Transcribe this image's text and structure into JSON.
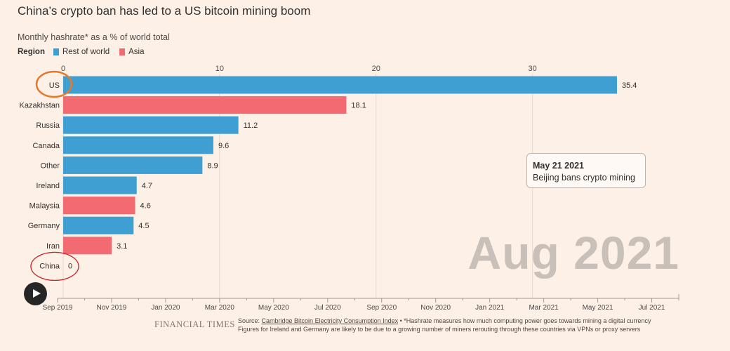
{
  "header": {
    "title": "China’s crypto ban has led to a US bitcoin mining boom",
    "subtitle": "Monthly hashrate* as a % of world total"
  },
  "legend": {
    "title": "Region",
    "items": [
      {
        "label": "Rest of world",
        "color": "#3f9fd3"
      },
      {
        "label": "Asia",
        "color": "#f26a72"
      }
    ]
  },
  "chart_data": {
    "type": "bar",
    "orientation": "horizontal",
    "categories": [
      "US",
      "Kazakhstan",
      "Russia",
      "Canada",
      "Other",
      "Ireland",
      "Malaysia",
      "Germany",
      "Iran",
      "China"
    ],
    "values": [
      35.4,
      18.1,
      11.2,
      9.6,
      8.9,
      4.7,
      4.6,
      4.5,
      3.1,
      0
    ],
    "value_labels": [
      "35.4",
      "18.1",
      "11.2",
      "9.6",
      "8.9",
      "4.7",
      "4.6",
      "4.5",
      "3.1",
      "0"
    ],
    "regions": [
      "Rest of world",
      "Asia",
      "Rest of world",
      "Rest of world",
      "Rest of world",
      "Rest of world",
      "Asia",
      "Rest of world",
      "Asia",
      "Asia"
    ],
    "xlim": [
      0,
      35.4
    ],
    "xticks": [
      0,
      10,
      20,
      30
    ],
    "grid": true,
    "legend_position": "top-left",
    "highlighted": [
      "US",
      "China"
    ],
    "colors": {
      "Rest of world": "#3f9fd3",
      "Asia": "#f26a72",
      "highlight_us": "#e8782a",
      "highlight_china": "#c8262b"
    }
  },
  "annotation": {
    "date": "May 21 2021",
    "text": "Beijing bans crypto mining"
  },
  "current_date": "Aug 2021",
  "timeline": {
    "labels": [
      "Sep 2019",
      "Nov 2019",
      "Jan 2020",
      "Mar 2020",
      "May 2020",
      "Jul 2020",
      "Sep 2020",
      "Nov 2020",
      "Jan 2021",
      "Mar 2021",
      "May 2021",
      "Jul 2021"
    ],
    "start": "Sep 2019",
    "end": "Aug 2021",
    "current": "Aug 2021",
    "play_icon": "play-icon"
  },
  "footer": {
    "logo": "FINANCIAL TIMES",
    "source_prefix": "Source: ",
    "source_link": "Cambridge Bitcoin Electricity Consumption Index",
    "source_note": " • *Hashrate measures how much computing power goes towards mining a digital currency",
    "source_line2": "Figures for Ireland and Germany are likely to be due to a growing number of miners rerouting through these countries via VPNs or proxy servers"
  }
}
